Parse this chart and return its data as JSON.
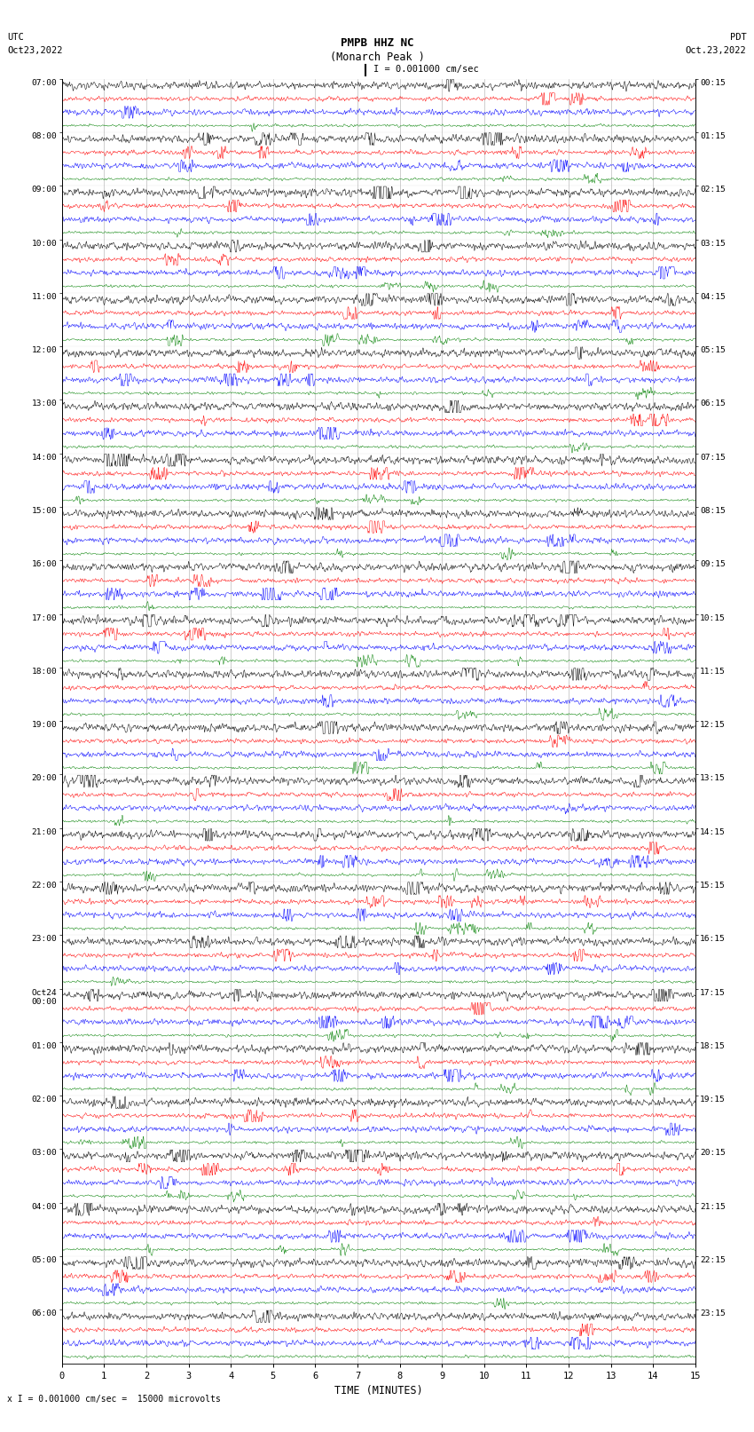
{
  "title_line1": "PMPB HHZ NC",
  "title_line2": "(Monarch Peak )",
  "scale_label": "I = 0.001000 cm/sec",
  "utc_label": "UTC",
  "date_left": "Oct23,2022",
  "date_right": "Oct.23,2022",
  "pdt_label": "PDT",
  "xlabel": "TIME (MINUTES)",
  "bottom_note": "x I = 0.001000 cm/sec =  15000 microvolts",
  "left_times": [
    "07:00",
    "08:00",
    "09:00",
    "10:00",
    "11:00",
    "12:00",
    "13:00",
    "14:00",
    "15:00",
    "16:00",
    "17:00",
    "18:00",
    "19:00",
    "20:00",
    "21:00",
    "22:00",
    "23:00",
    "00:00",
    "01:00",
    "02:00",
    "03:00",
    "04:00",
    "05:00",
    "06:00"
  ],
  "left_times_extra": [
    "Oct24"
  ],
  "right_times": [
    "00:15",
    "01:15",
    "02:15",
    "03:15",
    "04:15",
    "05:15",
    "06:15",
    "07:15",
    "08:15",
    "09:15",
    "10:15",
    "11:15",
    "12:15",
    "13:15",
    "14:15",
    "15:15",
    "16:15",
    "17:15",
    "18:15",
    "19:15",
    "20:15",
    "21:15",
    "22:15",
    "23:15"
  ],
  "n_rows": 24,
  "n_traces_per_row": 4,
  "colors": [
    "black",
    "red",
    "blue",
    "green"
  ],
  "bg_color": "#ffffff",
  "plot_bg": "#ffffff",
  "x_min": 0,
  "x_max": 15,
  "x_ticks": [
    0,
    1,
    2,
    3,
    4,
    5,
    6,
    7,
    8,
    9,
    10,
    11,
    12,
    13,
    14,
    15
  ],
  "tick_fontsize": 7.5,
  "label_fontsize": 8.5,
  "title_fontsize": 9,
  "noise_scale": [
    0.12,
    0.07,
    0.09,
    0.04
  ],
  "trace_lw": 0.35,
  "vline_color": "#888888",
  "vline_lw": 0.4
}
